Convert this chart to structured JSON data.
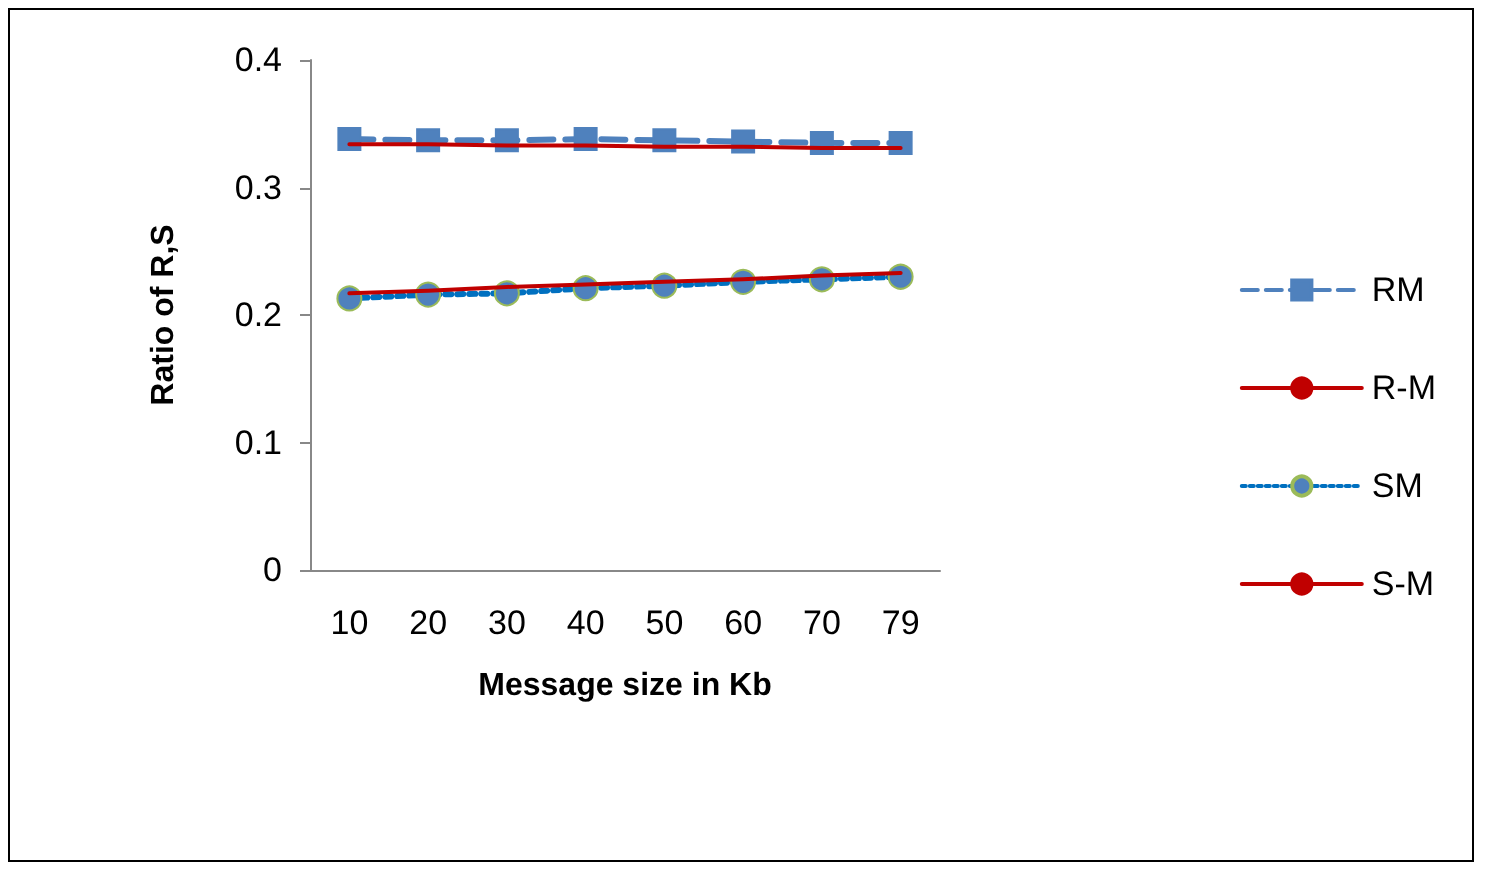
{
  "chart_data": {
    "type": "line",
    "xlabel": "Message size in Kb",
    "ylabel": "Ratio of R,S",
    "categories": [
      "10",
      "20",
      "30",
      "40",
      "50",
      "60",
      "70",
      "79"
    ],
    "series": [
      {
        "name": "RM",
        "color": "#4f81bd",
        "marker": "square",
        "line_style": "dashed",
        "values": [
          0.338,
          0.337,
          0.337,
          0.338,
          0.337,
          0.336,
          0.335,
          0.335
        ]
      },
      {
        "name": "R-M",
        "color": "#c00000",
        "marker": "none",
        "line_style": "solid",
        "values": [
          0.334,
          0.334,
          0.333,
          0.333,
          0.332,
          0.332,
          0.331,
          0.331
        ]
      },
      {
        "name": "SM",
        "color": "#4f81bd",
        "marker": "circle",
        "line_style": "dotted",
        "values": [
          0.213,
          0.216,
          0.217,
          0.221,
          0.223,
          0.226,
          0.228,
          0.23
        ]
      },
      {
        "name": "S-M",
        "color": "#c00000",
        "marker": "none",
        "line_style": "solid",
        "values": [
          0.217,
          0.219,
          0.222,
          0.224,
          0.226,
          0.228,
          0.231,
          0.233
        ]
      }
    ],
    "ylim": [
      0,
      0.4
    ],
    "yticks": [
      0,
      0.1,
      0.2,
      0.3,
      0.4
    ],
    "grid": false,
    "legend": "right"
  }
}
